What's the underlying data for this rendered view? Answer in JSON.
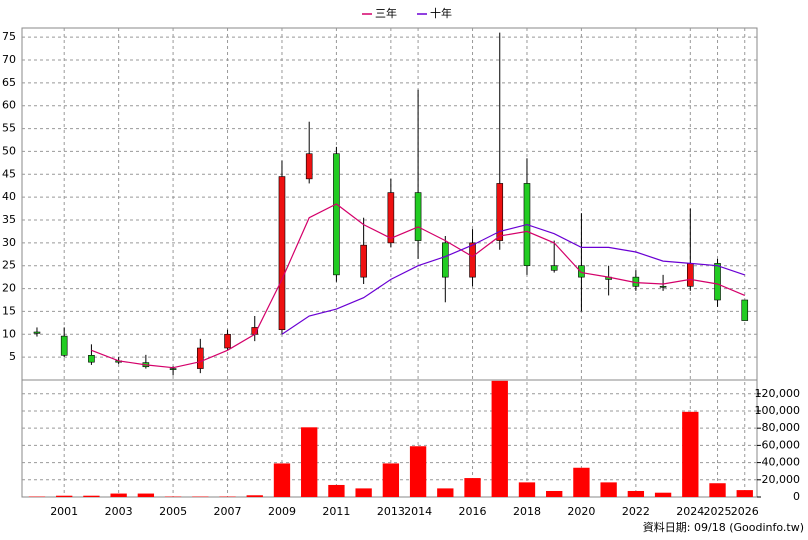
{
  "chart_data": [
    {
      "type": "candlestick",
      "categories": [
        null,
        "2001",
        null,
        "2003",
        null,
        "2005",
        null,
        "2007",
        null,
        "2009",
        null,
        "2011",
        null,
        "2013",
        "2014",
        null,
        "2016",
        null,
        "2018",
        null,
        "2020",
        null,
        "2022",
        null,
        "2024",
        "2025",
        "2026"
      ],
      "open": [
        10.5,
        9.6,
        5.4,
        4.2,
        3.8,
        2.5,
        2.5,
        7,
        10,
        11,
        44,
        49.5,
        22.5,
        30,
        41,
        30,
        22.5,
        30.5,
        43,
        25,
        25,
        22.5,
        22.5,
        20.5,
        20.5,
        25.5,
        17.5
      ],
      "high": [
        11.5,
        11.5,
        7.8,
        5,
        5.5,
        3,
        9,
        11,
        14,
        48,
        56.5,
        51,
        35.5,
        44,
        63.5,
        31.5,
        33,
        76,
        48.5,
        30.5,
        36.5,
        25,
        24,
        23,
        37.5,
        26.5,
        17.5
      ],
      "low": [
        9.5,
        5,
        3.3,
        3.5,
        2.5,
        1,
        1.5,
        6.5,
        8.5,
        10,
        43,
        21.5,
        21,
        29,
        26.5,
        17,
        20.5,
        28.5,
        23,
        23.5,
        15,
        18.5,
        19.5,
        19.5,
        19.5,
        16,
        13
      ],
      "close": [
        10.2,
        5.4,
        3.9,
        3.9,
        2.9,
        2.4,
        7,
        10,
        11.5,
        44.5,
        49.5,
        23,
        29.5,
        41,
        30.5,
        22.5,
        30,
        43,
        25,
        24,
        22.5,
        22,
        20.5,
        20.3,
        25.5,
        17.5,
        13
      ],
      "up_color": "#ee1111",
      "down_color": "#22cc22",
      "series": [
        {
          "name": "三年",
          "color": "#d4006a",
          "values": [
            null,
            null,
            6.5,
            4.2,
            3.3,
            2.7,
            4,
            6.5,
            10,
            22,
            35.5,
            38.5,
            34,
            31,
            33.5,
            30.5,
            27,
            31.5,
            32.5,
            30,
            23.5,
            22.5,
            21.3,
            21,
            22,
            21,
            18.5
          ]
        },
        {
          "name": "十年",
          "color": "#6a00d4",
          "values": [
            null,
            null,
            null,
            null,
            null,
            null,
            null,
            null,
            null,
            10,
            14,
            15.5,
            18,
            22,
            25,
            27,
            29.5,
            32.5,
            34,
            32,
            29,
            29,
            28,
            26,
            25.5,
            25,
            23
          ]
        }
      ],
      "ylim": [
        0,
        77
      ],
      "yticks": [
        5,
        10,
        15,
        20,
        25,
        30,
        35,
        40,
        45,
        50,
        55,
        60,
        65,
        70,
        75
      ],
      "grid": true
    },
    {
      "type": "bar",
      "values": [
        500,
        1500,
        1500,
        4000,
        4000,
        500,
        500,
        500,
        2000,
        39000,
        81000,
        14000,
        10000,
        39000,
        59000,
        10000,
        22000,
        135000,
        17000,
        7000,
        34000,
        17000,
        7000,
        5000,
        99000,
        16000,
        8000
      ],
      "color": "#ff0000",
      "ylim": [
        0,
        136000
      ],
      "yticks": [
        0,
        {
          "value": 20000,
          "label": "20,000"
        },
        {
          "value": 40000,
          "label": "40,000"
        },
        {
          "value": 60000,
          "label": "60,000"
        },
        {
          "value": 80000,
          "label": "80,000"
        },
        {
          "value": 100000,
          "label": "100,000"
        },
        {
          "value": 120000,
          "label": "120,000"
        }
      ],
      "grid": true
    }
  ],
  "footer": "資料日期: 09/18 (Goodinfo.tw)"
}
